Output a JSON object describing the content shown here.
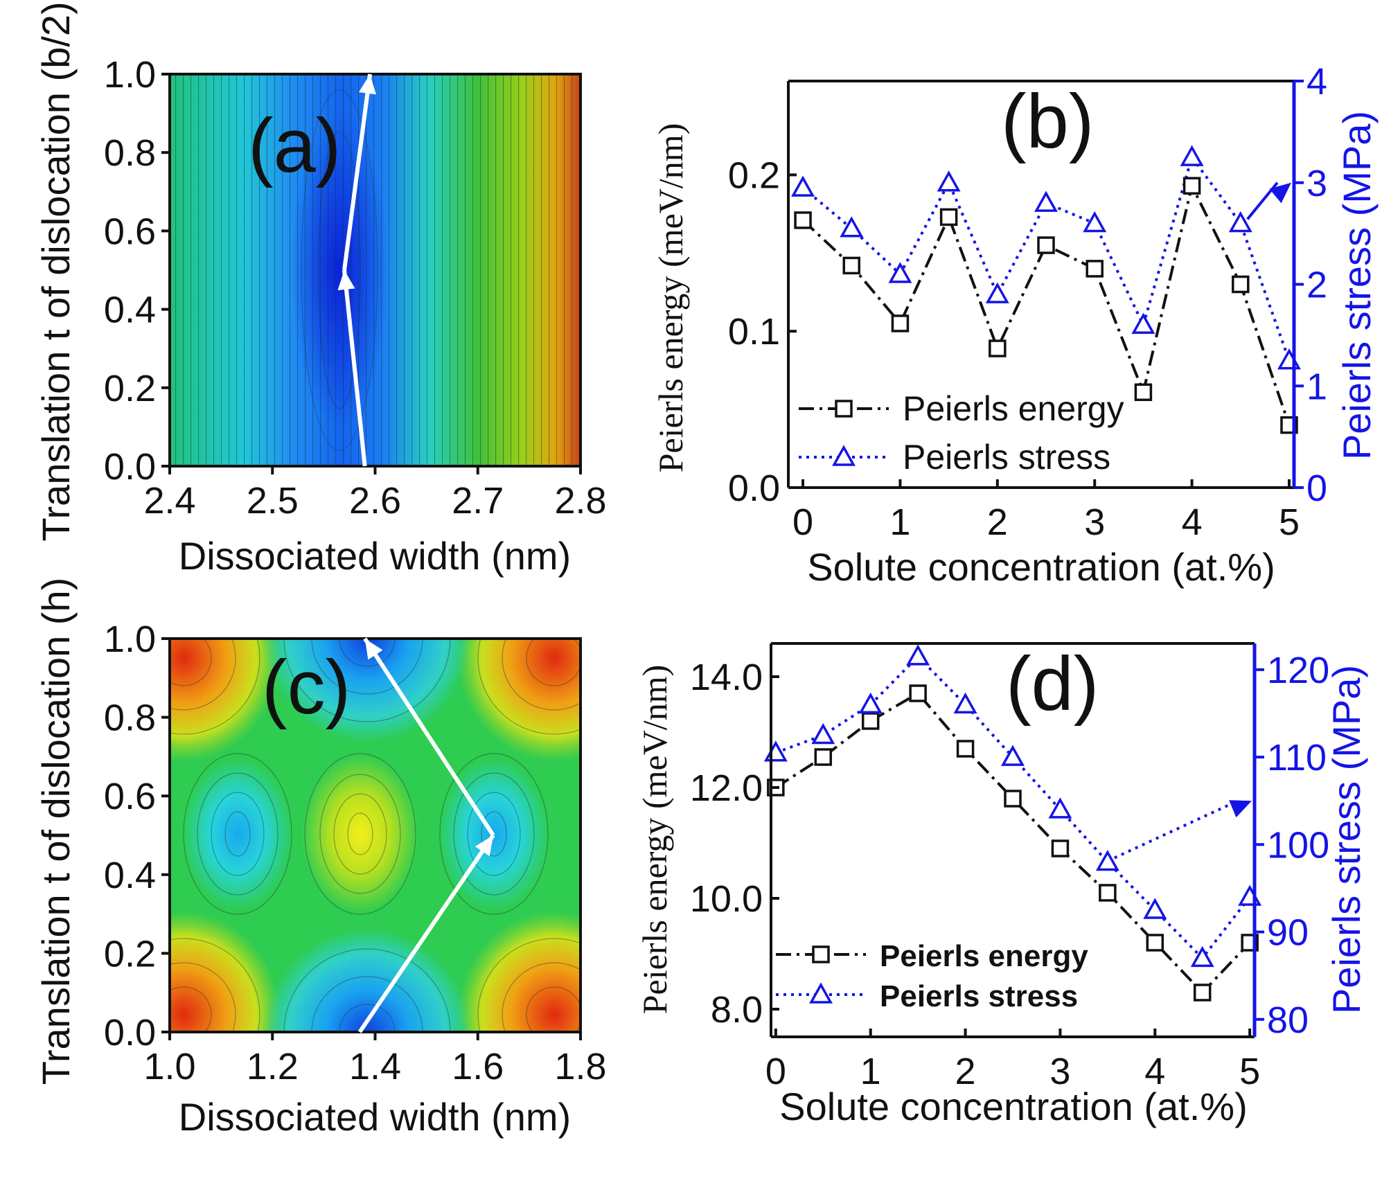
{
  "colors": {
    "energy": "#111111",
    "stress": "#1414e6",
    "arrow": "#ffffff"
  },
  "chart_data": [
    {
      "id": "a",
      "type": "heatmap",
      "panel_label": "(a)",
      "xlabel": "Dissociated width (nm)",
      "ylabel": "Translation t of dislocation (b/2)",
      "xlim": [
        2.4,
        2.8
      ],
      "ylim": [
        0.0,
        1.0
      ],
      "x_ticks": [
        "2.4",
        "2.5",
        "2.6",
        "2.7",
        "2.8"
      ],
      "y_ticks": [
        "0.0",
        "0.2",
        "0.4",
        "0.6",
        "0.8",
        "1.0"
      ],
      "minimum_path": [
        [
          2.59,
          0.0
        ],
        [
          2.57,
          0.5
        ],
        [
          2.595,
          1.0
        ]
      ],
      "colormap": "jet"
    },
    {
      "id": "b",
      "type": "line",
      "panel_label": "(b)",
      "xlabel": "Solute concentration (at.%)",
      "ylabel_left": "Peierls energy (meV/nm)",
      "ylabel_right": "Peierls stress (MPa)",
      "xlim": [
        -0.15,
        5.05
      ],
      "ylim_left": [
        0.0,
        0.26
      ],
      "ylim_right": [
        0,
        4
      ],
      "x_ticks": [
        "0",
        "1",
        "2",
        "3",
        "4",
        "5"
      ],
      "y_ticks_left": [
        "0.0",
        "0.1",
        "0.2"
      ],
      "y_ticks_right": [
        "0",
        "1",
        "2",
        "3",
        "4"
      ],
      "x": [
        0,
        0.5,
        1,
        1.5,
        2,
        2.5,
        3,
        3.5,
        4,
        4.5,
        5
      ],
      "series": [
        {
          "name": "Peierls energy",
          "axis": "left",
          "marker": "square",
          "style": "dash-dot",
          "values": [
            0.171,
            0.142,
            0.105,
            0.173,
            0.089,
            0.155,
            0.14,
            0.061,
            0.193,
            0.13,
            0.04
          ]
        },
        {
          "name": "Peierls stress",
          "axis": "right",
          "marker": "triangle",
          "style": "dotted",
          "values": [
            2.95,
            2.55,
            2.1,
            3.0,
            1.9,
            2.8,
            2.6,
            1.6,
            3.25,
            2.6,
            1.25
          ]
        }
      ],
      "legend": [
        "Peierls energy",
        "Peierls stress"
      ],
      "legend_position": "bottom-left"
    },
    {
      "id": "c",
      "type": "heatmap",
      "panel_label": "(c)",
      "xlabel": "Dissociated width (nm)",
      "ylabel": "Translation t of dislocation (h)",
      "xlim": [
        1.0,
        1.8
      ],
      "ylim": [
        0.0,
        1.0
      ],
      "x_ticks": [
        "1.0",
        "1.2",
        "1.4",
        "1.6",
        "1.8"
      ],
      "y_ticks": [
        "0.0",
        "0.2",
        "0.4",
        "0.6",
        "0.8",
        "1.0"
      ],
      "minimum_path": [
        [
          1.37,
          0.0
        ],
        [
          1.63,
          0.5
        ],
        [
          1.38,
          1.0
        ]
      ],
      "colormap": "jet"
    },
    {
      "id": "d",
      "type": "line",
      "panel_label": "(d)",
      "xlabel": "Solute concentration (at.%)",
      "ylabel_left": "Peierls energy (meV/nm)",
      "ylabel_right": "Peierls stress (MPa)",
      "xlim": [
        -0.05,
        5.05
      ],
      "ylim_left": [
        7.5,
        14.6
      ],
      "ylim_right": [
        78,
        123
      ],
      "x_ticks": [
        "0",
        "1",
        "2",
        "3",
        "4",
        "5"
      ],
      "y_ticks_left": [
        "8.0",
        "10.0",
        "12.0",
        "14.0"
      ],
      "y_ticks_right": [
        "80",
        "90",
        "100",
        "110",
        "120"
      ],
      "x": [
        0,
        0.5,
        1,
        1.5,
        2,
        2.5,
        3,
        3.5,
        4,
        4.5,
        5
      ],
      "series": [
        {
          "name": "Peierls energy",
          "axis": "left",
          "marker": "square",
          "style": "dash-dot",
          "values": [
            12.0,
            12.55,
            13.2,
            13.7,
            12.7,
            11.8,
            10.9,
            10.1,
            9.2,
            8.3,
            9.2
          ]
        },
        {
          "name": "Peierls stress",
          "axis": "right",
          "marker": "triangle",
          "style": "dotted",
          "values": [
            110.5,
            112.5,
            116,
            121.5,
            116,
            110,
            104,
            98,
            92.5,
            87,
            94
          ]
        }
      ],
      "legend": [
        "Peierls energy",
        "Peierls stress"
      ],
      "legend_position": "bottom-left"
    }
  ]
}
